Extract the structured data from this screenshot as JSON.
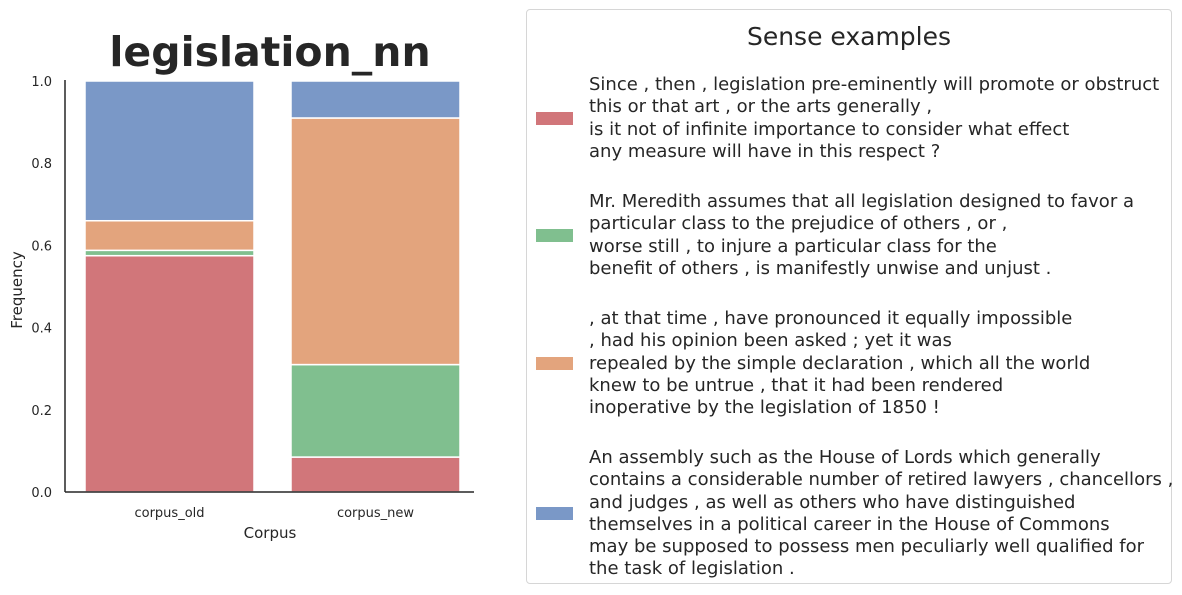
{
  "chart_data": {
    "type": "bar",
    "stacked": true,
    "title": "legislation_nn",
    "xlabel": "Corpus",
    "ylabel": "Frequency",
    "ylim": [
      0,
      1.0
    ],
    "yticks": [
      "0.0",
      "0.2",
      "0.4",
      "0.6",
      "0.8",
      "1.0"
    ],
    "categories": [
      "corpus_old",
      "corpus_new"
    ],
    "series": [
      {
        "color": "#d1767a",
        "values": [
          0.575,
          0.085
        ]
      },
      {
        "color": "#80bf8f",
        "values": [
          0.013,
          0.225
        ]
      },
      {
        "color": "#e3a47d",
        "values": [
          0.072,
          0.6
        ]
      },
      {
        "color": "#7a98c7",
        "values": [
          0.34,
          0.09
        ]
      }
    ],
    "grid": false,
    "legend_position": "right"
  },
  "legend": {
    "title": "Sense examples",
    "entries": [
      {
        "color": "#d1767a",
        "lines": [
          "Since , then , legislation pre-eminently will promote or obstruct",
          "this or that art , or the arts generally ,",
          "is it not of infinite importance to consider what effect",
          "any measure will have in this respect ?"
        ]
      },
      {
        "color": "#80bf8f",
        "lines": [
          "Mr. Meredith assumes that all legislation designed to favor a",
          "particular class to the prejudice of others , or ,",
          "worse still , to injure a particular class for the",
          "benefit of others , is manifestly unwise and unjust ."
        ]
      },
      {
        "color": "#e3a47d",
        "lines": [
          ", at that time , have pronounced it equally impossible",
          ", had his opinion been asked ; yet it was",
          "repealed by the simple declaration , which all the world",
          "knew to be untrue , that it had been rendered",
          "inoperative by the legislation of 1850 !"
        ]
      },
      {
        "color": "#7a98c7",
        "lines": [
          "An assembly such as the House of Lords which generally",
          "contains a considerable number of retired lawyers , chancellors ,",
          "and judges , as well as others who have distinguished",
          "themselves in a political career in the House of Commons",
          "may be supposed to possess men peculiarly well qualified for",
          "the task of legislation ."
        ]
      }
    ]
  }
}
